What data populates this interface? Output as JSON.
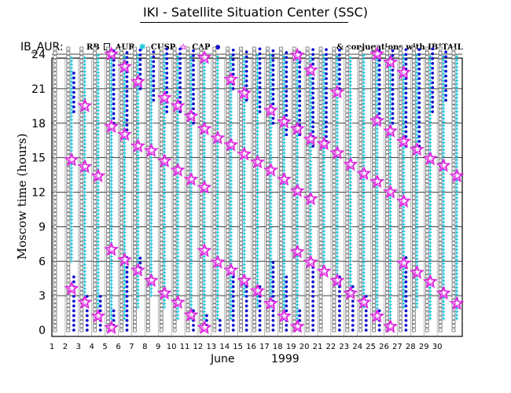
{
  "page": {
    "title": "IKI - Satellite Situation Center (SSC)",
    "chart_label": "IB_AUR:",
    "legend": [
      {
        "label": "RB",
        "key": "rb",
        "symbol": "none"
      },
      {
        "label": "AUR",
        "key": "aur",
        "symbol": "square"
      },
      {
        "label": "CUSP",
        "key": "cusp",
        "symbol": "star-cyan"
      },
      {
        "label": "CAP",
        "key": "cap",
        "symbol": "dot"
      }
    ],
    "conjugation_note": "& conjugations with IB°TAIL",
    "ylabel": "Moscow time (hours)",
    "xlabel_month": "June",
    "xlabel_year": "1999"
  },
  "colors": {
    "aur": "#555555",
    "cusp": "#22c7dd",
    "cap": "#1010d0",
    "conjugation": "#e020e0",
    "frame": "#000000",
    "grid": "#000000"
  },
  "icons": {
    "aur": "small-square-icon",
    "cusp": "cyan-star-icon",
    "cap": "blue-dot-icon",
    "conjugation": "magenta-star-icon"
  },
  "chart_data": {
    "type": "scatter",
    "title": "IKI - Satellite Situation Center (SSC)",
    "xlabel": "June 1999",
    "ylabel": "Moscow time (hours)",
    "xlim": [
      1,
      31
    ],
    "ylim": [
      0,
      25
    ],
    "xticks": [
      "1",
      "2",
      "3",
      "4",
      "5",
      "6",
      "7",
      "8",
      "9",
      "10",
      "11",
      "12",
      "13",
      "14",
      "15",
      "16",
      "17",
      "18",
      "19",
      "20",
      "21",
      "22",
      "23",
      "24",
      "25",
      "26",
      "27",
      "28",
      "29",
      "30"
    ],
    "yticks": [
      "0",
      "3",
      "6",
      "9",
      "12",
      "15",
      "18",
      "21",
      "24"
    ],
    "grid": true,
    "orbit_period_hours": 1.7,
    "days": [
      {
        "day": 1,
        "aur": [
          [
            0,
            24.5
          ]
        ],
        "cusp": [],
        "cap": [],
        "conj": []
      },
      {
        "day": 2,
        "aur": [
          [
            0,
            24.5
          ]
        ],
        "cusp": [
          [
            6,
            24
          ]
        ],
        "cap": [
          [
            0,
            5
          ],
          [
            19,
            22.5
          ]
        ],
        "conj": [
          3.6,
          14.8
        ]
      },
      {
        "day": 3,
        "aur": [
          [
            0,
            24.5
          ]
        ],
        "cusp": [
          [
            3,
            24
          ]
        ],
        "cap": [
          [
            0,
            3
          ]
        ],
        "conj": [
          2.4,
          14.2,
          19.5
        ]
      },
      {
        "day": 4,
        "aur": [
          [
            0,
            24.5
          ]
        ],
        "cusp": [
          [
            2,
            24
          ]
        ],
        "cap": [
          [
            0,
            3
          ]
        ],
        "conj": [
          1.2,
          13.4
        ]
      },
      {
        "day": 5,
        "aur": [
          [
            0,
            24.5
          ]
        ],
        "cusp": [
          [
            1,
            24
          ]
        ],
        "cap": [
          [
            0,
            2
          ],
          [
            18,
            24.5
          ]
        ],
        "conj": [
          0.2,
          7.0,
          17.7,
          24.0
        ]
      },
      {
        "day": 6,
        "aur": [
          [
            0,
            24.5
          ]
        ],
        "cusp": [
          [
            1,
            24
          ]
        ],
        "cap": [
          [
            0,
            6.5
          ],
          [
            17,
            24.5
          ]
        ],
        "conj": [
          6.1,
          17.0,
          22.9
        ]
      },
      {
        "day": 7,
        "aur": [
          [
            0,
            24.5
          ]
        ],
        "cusp": [
          [
            2,
            24
          ]
        ],
        "cap": [
          [
            5,
            6.5
          ],
          [
            21,
            24.5
          ]
        ],
        "conj": [
          5.2,
          16.0,
          21.6
        ]
      },
      {
        "day": 8,
        "aur": [
          [
            0,
            24.5
          ]
        ],
        "cusp": [
          [
            3,
            24
          ]
        ],
        "cap": [
          [
            20,
            24.5
          ]
        ],
        "conj": [
          4.3,
          15.6
        ]
      },
      {
        "day": 9,
        "aur": [
          [
            0,
            24.5
          ]
        ],
        "cusp": [
          [
            2,
            24
          ]
        ],
        "cap": [
          [
            19,
            24.5
          ]
        ],
        "conj": [
          3.2,
          14.7,
          20.2
        ]
      },
      {
        "day": 10,
        "aur": [
          [
            0,
            24.5
          ]
        ],
        "cusp": [
          [
            1,
            24
          ]
        ],
        "cap": [
          [
            19,
            24.5
          ]
        ],
        "conj": [
          2.4,
          13.9,
          19.5
        ]
      },
      {
        "day": 11,
        "aur": [
          [
            0,
            24.5
          ]
        ],
        "cusp": [
          [
            1,
            24
          ]
        ],
        "cap": [
          [
            0,
            2
          ],
          [
            18,
            24.5
          ]
        ],
        "conj": [
          1.3,
          13.1,
          18.6
        ]
      },
      {
        "day": 12,
        "aur": [
          [
            0,
            24.5
          ]
        ],
        "cusp": [
          [
            1,
            24
          ]
        ],
        "cap": [
          [
            0,
            1.5
          ]
        ],
        "conj": [
          0.2,
          6.9,
          12.4,
          17.5,
          23.7
        ]
      },
      {
        "day": 13,
        "aur": [
          [
            0,
            24.5
          ]
        ],
        "cusp": [
          [
            1,
            24
          ]
        ],
        "cap": [
          [
            0,
            1
          ]
        ],
        "conj": [
          5.9,
          16.7
        ]
      },
      {
        "day": 14,
        "aur": [
          [
            0,
            24.5
          ]
        ],
        "cusp": [
          [
            1,
            24
          ]
        ],
        "cap": [
          [
            0,
            5
          ],
          [
            21,
            24.5
          ]
        ],
        "conj": [
          5.2,
          16.1,
          21.8
        ]
      },
      {
        "day": 15,
        "aur": [
          [
            0,
            24.5
          ]
        ],
        "cusp": [
          [
            3,
            24
          ]
        ],
        "cap": [
          [
            0,
            4
          ],
          [
            20,
            24.5
          ]
        ],
        "conj": [
          4.3,
          15.3,
          20.6
        ]
      },
      {
        "day": 16,
        "aur": [
          [
            0,
            24.5
          ]
        ],
        "cusp": [
          [
            2,
            24
          ]
        ],
        "cap": [
          [
            0,
            4
          ],
          [
            19,
            24.5
          ]
        ],
        "conj": [
          3.4,
          14.6
        ]
      },
      {
        "day": 17,
        "aur": [
          [
            0,
            24.5
          ]
        ],
        "cusp": [
          [
            2,
            24
          ]
        ],
        "cap": [
          [
            0,
            6
          ],
          [
            18,
            24.5
          ]
        ],
        "conj": [
          2.3,
          13.9,
          19.1
        ]
      },
      {
        "day": 18,
        "aur": [
          [
            0,
            24.5
          ]
        ],
        "cusp": [
          [
            1,
            24
          ]
        ],
        "cap": [
          [
            0,
            5
          ],
          [
            17,
            24.5
          ]
        ],
        "conj": [
          1.2,
          13.1,
          18.1
        ]
      },
      {
        "day": 19,
        "aur": [
          [
            0,
            24.5
          ]
        ],
        "cusp": [
          [
            1,
            24
          ]
        ],
        "cap": [
          [
            0,
            2
          ],
          [
            17,
            24.5
          ]
        ],
        "conj": [
          0.3,
          6.8,
          12.1,
          17.5,
          23.9
        ]
      },
      {
        "day": 20,
        "aur": [
          [
            0,
            24.5
          ]
        ],
        "cusp": [
          [
            6,
            24
          ]
        ],
        "cap": [
          [
            0,
            6
          ],
          [
            16,
            24.5
          ]
        ],
        "conj": [
          5.9,
          11.4,
          16.6,
          22.6
        ]
      },
      {
        "day": 21,
        "aur": [
          [
            0,
            24.5
          ]
        ],
        "cusp": [
          [
            5,
            24
          ]
        ],
        "cap": [
          [
            16,
            24.5
          ]
        ],
        "conj": [
          5.1,
          16.2
        ]
      },
      {
        "day": 22,
        "aur": [
          [
            0,
            24.5
          ]
        ],
        "cusp": [
          [
            4,
            24
          ]
        ],
        "cap": [
          [
            0,
            5
          ],
          [
            21,
            24.5
          ]
        ],
        "conj": [
          4.3,
          15.4,
          20.7
        ]
      },
      {
        "day": 23,
        "aur": [
          [
            0,
            24.5
          ]
        ],
        "cusp": [
          [
            3,
            24
          ]
        ],
        "cap": [
          [
            0,
            4
          ]
        ],
        "conj": [
          3.2,
          14.4
        ]
      },
      {
        "day": 24,
        "aur": [
          [
            0,
            24.5
          ]
        ],
        "cusp": [
          [
            2,
            24
          ]
        ],
        "cap": [
          [
            0,
            3
          ]
        ],
        "conj": [
          2.4,
          13.6
        ]
      },
      {
        "day": 25,
        "aur": [
          [
            0,
            24.5
          ]
        ],
        "cusp": [
          [
            1,
            24
          ]
        ],
        "cap": [
          [
            0,
            2
          ],
          [
            18,
            24.5
          ]
        ],
        "conj": [
          1.2,
          12.9,
          18.2,
          24.0
        ]
      },
      {
        "day": 26,
        "aur": [
          [
            0,
            24.5
          ]
        ],
        "cusp": [
          [
            1,
            24
          ]
        ],
        "cap": [
          [
            18,
            24.5
          ]
        ],
        "conj": [
          0.3,
          12.0,
          17.3,
          23.3
        ]
      },
      {
        "day": 27,
        "aur": [
          [
            0,
            24.5
          ]
        ],
        "cusp": [
          [
            2,
            24
          ]
        ],
        "cap": [
          [
            0,
            6.5
          ],
          [
            16,
            24.5
          ]
        ],
        "conj": [
          5.8,
          11.2,
          16.4,
          22.4
        ]
      },
      {
        "day": 28,
        "aur": [
          [
            0,
            24.5
          ]
        ],
        "cusp": [
          [
            2,
            24
          ]
        ],
        "cap": [
          [
            16,
            24.5
          ]
        ],
        "conj": [
          5.0,
          15.7
        ]
      },
      {
        "day": 29,
        "aur": [
          [
            0,
            24.5
          ]
        ],
        "cusp": [
          [
            1,
            24
          ]
        ],
        "cap": [
          [
            19,
            24.5
          ]
        ],
        "conj": [
          4.2,
          14.9
        ]
      },
      {
        "day": 30,
        "aur": [
          [
            0,
            24.5
          ]
        ],
        "cusp": [
          [
            1,
            24
          ]
        ],
        "cap": [
          [
            20,
            24.5
          ]
        ],
        "conj": [
          3.2,
          14.3
        ]
      },
      {
        "day": 31,
        "aur": [
          [
            0,
            24.5
          ]
        ],
        "cusp": [
          [
            1,
            24
          ]
        ],
        "cap": [],
        "conj": [
          2.3,
          13.4
        ]
      }
    ]
  }
}
